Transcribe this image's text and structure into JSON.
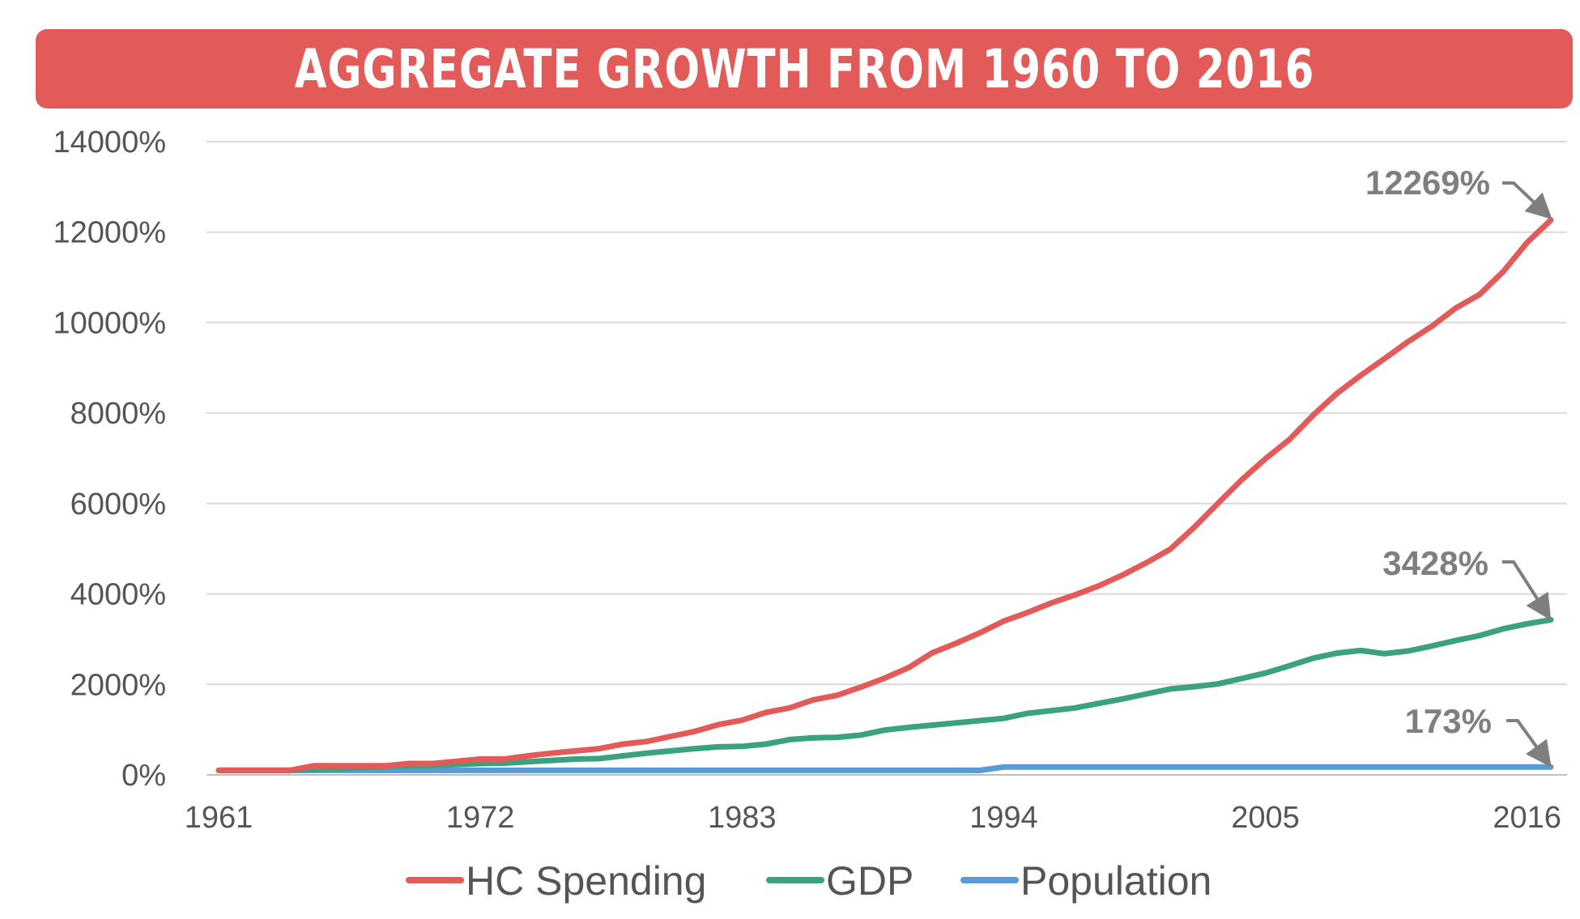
{
  "chart_data": {
    "type": "line",
    "title": "AGGREGATE GROWTH FROM 1960 TO 2016",
    "xlabel": "",
    "ylabel": "",
    "x": [
      1961,
      1962,
      1963,
      1964,
      1965,
      1966,
      1967,
      1968,
      1969,
      1970,
      1971,
      1972,
      1973,
      1974,
      1975,
      1976,
      1977,
      1978,
      1979,
      1980,
      1981,
      1982,
      1983,
      1984,
      1985,
      1986,
      1987,
      1988,
      1989,
      1990,
      1991,
      1992,
      1993,
      1994,
      1995,
      1996,
      1997,
      1998,
      1999,
      2000,
      2001,
      2002,
      2003,
      2004,
      2005,
      2006,
      2007,
      2008,
      2009,
      2010,
      2011,
      2012,
      2013,
      2014,
      2015,
      2016,
      2017
    ],
    "x_ticks": [
      "1961",
      "1972",
      "1983",
      "1994",
      "2005",
      "2016"
    ],
    "y_ticks": [
      "0%",
      "2000%",
      "4000%",
      "6000%",
      "8000%",
      "10000%",
      "12000%",
      "14000%"
    ],
    "ylim": [
      0,
      14000
    ],
    "grid": "horizontal",
    "legend": "bottom",
    "colors": {
      "hc": "#e35b58",
      "gdp": "#3aa27f",
      "pop": "#5b9bd5",
      "annotation": "#7f7f7f",
      "banner": "#e35b58"
    },
    "series": [
      {
        "name": "HC Spending",
        "values": [
          100,
          100,
          100,
          100,
          200,
          200,
          200,
          200,
          250,
          250,
          300,
          350,
          350,
          420,
          480,
          530,
          580,
          680,
          740,
          850,
          960,
          1110,
          1210,
          1380,
          1480,
          1660,
          1760,
          1940,
          2140,
          2370,
          2700,
          2910,
          3140,
          3400,
          3590,
          3800,
          3980,
          4180,
          4420,
          4690,
          4990,
          5470,
          6000,
          6520,
          6990,
          7410,
          7950,
          8430,
          8830,
          9200,
          9580,
          9920,
          10320,
          10620,
          11130,
          11770,
          12269
        ]
      },
      {
        "name": "GDP",
        "values": [
          100,
          100,
          100,
          100,
          120,
          140,
          160,
          180,
          200,
          210,
          230,
          250,
          260,
          290,
          320,
          350,
          360,
          420,
          480,
          530,
          580,
          620,
          630,
          680,
          780,
          820,
          830,
          880,
          990,
          1050,
          1100,
          1150,
          1200,
          1250,
          1360,
          1420,
          1480,
          1580,
          1680,
          1790,
          1900,
          1950,
          2010,
          2130,
          2250,
          2410,
          2580,
          2690,
          2750,
          2680,
          2740,
          2850,
          2970,
          3080,
          3230,
          3340,
          3428
        ]
      },
      {
        "name": "Population",
        "values": [
          100,
          100,
          100,
          100,
          100,
          100,
          100,
          100,
          100,
          100,
          100,
          100,
          100,
          100,
          100,
          100,
          100,
          100,
          100,
          100,
          100,
          100,
          100,
          100,
          100,
          100,
          100,
          100,
          100,
          100,
          100,
          100,
          100,
          173,
          173,
          173,
          173,
          173,
          173,
          173,
          173,
          173,
          173,
          173,
          173,
          173,
          173,
          173,
          173,
          173,
          173,
          173,
          173,
          173,
          173,
          173,
          173
        ]
      }
    ],
    "annotations": [
      "12269%",
      "3428%",
      "173%"
    ]
  }
}
